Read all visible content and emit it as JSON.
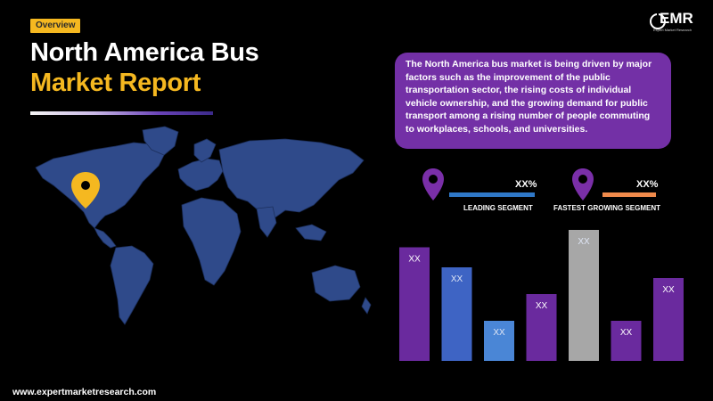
{
  "badge": "Overview",
  "title": {
    "line1": "North America Bus",
    "line2": "Market Report"
  },
  "logo": {
    "text": "EMR",
    "subtitle": "Expert Market Research"
  },
  "description": "The North America bus market is being driven by major factors such as the improvement of the public transportation sector, the rising costs of individual vehicle ownership, and the growing demand for public transport among a rising number of people commuting to workplaces, schools, and universities.",
  "segments": [
    {
      "value": "XX%",
      "label": "LEADING SEGMENT",
      "pin_color": "#7a2fa8",
      "bar_color": "#2f78c8"
    },
    {
      "value": "XX%",
      "label": "FASTEST GROWING SEGMENT",
      "pin_color": "#7a2fa8",
      "bar_color": "#f08a4b"
    }
  ],
  "colors": {
    "accent": "#f5b820",
    "purple": "#7330a6",
    "map": "#2f4a8a",
    "marker": "#f5b820"
  },
  "chart_data": {
    "type": "bar",
    "categories": [
      "",
      "",
      "",
      "",
      "",
      "",
      ""
    ],
    "values": [
      85,
      70,
      30,
      50,
      98,
      30,
      62
    ],
    "labels": [
      "XX",
      "XX",
      "XX",
      "XX",
      "XX",
      "XX",
      "XX"
    ],
    "colors": [
      "#6a2a9e",
      "#3e64c4",
      "#4a86d6",
      "#6a2a9e",
      "#a7a7a7",
      "#6a2a9e",
      "#6a2a9e"
    ],
    "ylim": [
      0,
      100
    ],
    "title": "",
    "xlabel": "",
    "ylabel": "",
    "grid": false
  },
  "footer": "www.expertmarketresearch.com"
}
